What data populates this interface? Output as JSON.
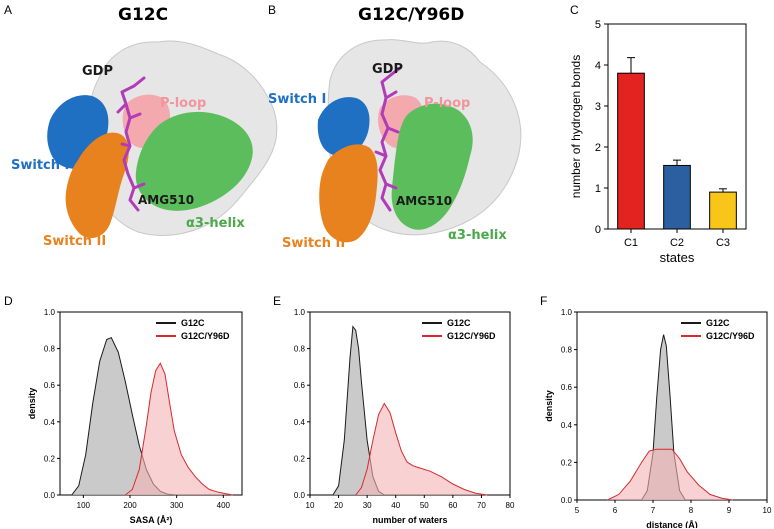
{
  "panels": {
    "A": {
      "letter": "A",
      "title": "G12C",
      "labels": {
        "gdp": "GDP",
        "ploop": "P-loop",
        "switch1": "Switch I",
        "switch2": "Switch II",
        "ligand": "AMG510",
        "helix": "α3-helix"
      }
    },
    "B": {
      "letter": "B",
      "title": "G12C/Y96D",
      "labels": {
        "gdp": "GDP",
        "ploop": "P-loop",
        "switch1": "Switch I",
        "switch2": "Switch II",
        "ligand": "AMG510",
        "helix": "α3-helix"
      }
    },
    "C": {
      "letter": "C"
    },
    "D": {
      "letter": "D"
    },
    "E": {
      "letter": "E"
    },
    "F": {
      "letter": "F"
    }
  },
  "colors": {
    "switch1": "#1f6fc3",
    "switch2": "#e8821e",
    "ploop": "#f4a9ae",
    "helix": "#5cbd5c",
    "surface": "#e6e6e6",
    "ligand": "#b03cb8",
    "g12c_fill": "#b8b8b8",
    "g12c_line": "#1a1a1a",
    "y96d_fill": "#f4b3b6",
    "y96d_line": "#d62a2f"
  },
  "chart_data": [
    {
      "id": "C",
      "type": "bar",
      "categories": [
        "C1",
        "C2",
        "C3"
      ],
      "values": [
        3.8,
        1.55,
        0.9
      ],
      "errors": [
        0.38,
        0.13,
        0.08
      ],
      "bar_colors": [
        "#e3231f",
        "#2c5fa0",
        "#f7c619"
      ],
      "xlabel": "states",
      "ylabel": "number of hydrogen bonds",
      "ylim": [
        0,
        5
      ],
      "yticks": [
        "0",
        "1",
        "2",
        "3",
        "4",
        "5"
      ]
    },
    {
      "id": "D",
      "type": "area",
      "xlabel": "SASA (Å²)",
      "ylabel": "density",
      "xlim": [
        50,
        440
      ],
      "ylim": [
        0,
        1.0
      ],
      "xticks": [
        "100",
        "200",
        "300",
        "400"
      ],
      "xtick_values": [
        100,
        200,
        300,
        400
      ],
      "yticks": [
        "0.0",
        "0.2",
        "0.4",
        "0.6",
        "0.8",
        "1.0"
      ],
      "legend_position": "top-right",
      "series": [
        {
          "name": "G12C",
          "x": [
            75,
            90,
            105,
            120,
            135,
            150,
            160,
            175,
            190,
            205,
            220,
            235,
            250,
            265,
            280,
            300
          ],
          "y": [
            0.0,
            0.05,
            0.22,
            0.5,
            0.73,
            0.85,
            0.86,
            0.78,
            0.62,
            0.44,
            0.27,
            0.14,
            0.06,
            0.02,
            0.005,
            0.0
          ]
        },
        {
          "name": "G12C/Y96D",
          "x": [
            190,
            205,
            220,
            235,
            245,
            255,
            265,
            275,
            285,
            295,
            310,
            325,
            340,
            355,
            370,
            390,
            410,
            420
          ],
          "y": [
            0.0,
            0.03,
            0.14,
            0.38,
            0.56,
            0.68,
            0.72,
            0.66,
            0.5,
            0.35,
            0.22,
            0.15,
            0.1,
            0.06,
            0.03,
            0.015,
            0.005,
            0.0
          ]
        }
      ]
    },
    {
      "id": "E",
      "type": "area",
      "xlabel": "number of waters",
      "ylabel": "",
      "xlim": [
        10,
        80
      ],
      "ylim": [
        0,
        1.0
      ],
      "xticks": [
        "10",
        "20",
        "30",
        "40",
        "50",
        "60",
        "70",
        "80"
      ],
      "xtick_values": [
        10,
        20,
        30,
        40,
        50,
        60,
        70,
        80
      ],
      "yticks": [
        "0.0",
        "0.2",
        "0.4",
        "0.6",
        "0.8",
        "1.0"
      ],
      "legend_position": "top-right",
      "series": [
        {
          "name": "G12C",
          "x": [
            18,
            20,
            22,
            24,
            25,
            26,
            27,
            28,
            30,
            32,
            34,
            36
          ],
          "y": [
            0.0,
            0.05,
            0.3,
            0.75,
            0.92,
            0.9,
            0.8,
            0.62,
            0.3,
            0.1,
            0.02,
            0.0
          ]
        },
        {
          "name": "G12C/Y96D",
          "x": [
            26,
            28,
            30,
            32,
            34,
            36,
            38,
            40,
            42,
            44,
            46,
            48,
            52,
            56,
            60,
            64,
            68,
            72
          ],
          "y": [
            0.0,
            0.04,
            0.14,
            0.3,
            0.44,
            0.5,
            0.45,
            0.34,
            0.24,
            0.18,
            0.16,
            0.15,
            0.13,
            0.1,
            0.06,
            0.03,
            0.01,
            0.0
          ]
        }
      ]
    },
    {
      "id": "F",
      "type": "area",
      "xlabel": "distance (Å)",
      "ylabel": "density",
      "xlim": [
        5,
        10
      ],
      "ylim": [
        0,
        1.0
      ],
      "xticks": [
        "5",
        "6",
        "7",
        "8",
        "9",
        "10"
      ],
      "xtick_values": [
        5,
        6,
        7,
        8,
        9,
        10
      ],
      "yticks": [
        "0.0",
        "0.2",
        "0.4",
        "0.6",
        "0.8",
        "1.0"
      ],
      "legend_position": "top-right",
      "series": [
        {
          "name": "G12C",
          "x": [
            6.7,
            6.85,
            7.0,
            7.1,
            7.2,
            7.28,
            7.35,
            7.45,
            7.55,
            7.7,
            7.85
          ],
          "y": [
            0.0,
            0.05,
            0.25,
            0.55,
            0.8,
            0.88,
            0.82,
            0.55,
            0.25,
            0.05,
            0.0
          ]
        },
        {
          "name": "G12C/Y96D",
          "x": [
            5.8,
            6.1,
            6.4,
            6.7,
            6.9,
            7.1,
            7.3,
            7.5,
            7.7,
            7.9,
            8.2,
            8.5,
            8.8,
            9.1
          ],
          "y": [
            0.0,
            0.03,
            0.1,
            0.2,
            0.26,
            0.27,
            0.27,
            0.27,
            0.22,
            0.15,
            0.08,
            0.03,
            0.01,
            0.0
          ]
        }
      ]
    }
  ]
}
